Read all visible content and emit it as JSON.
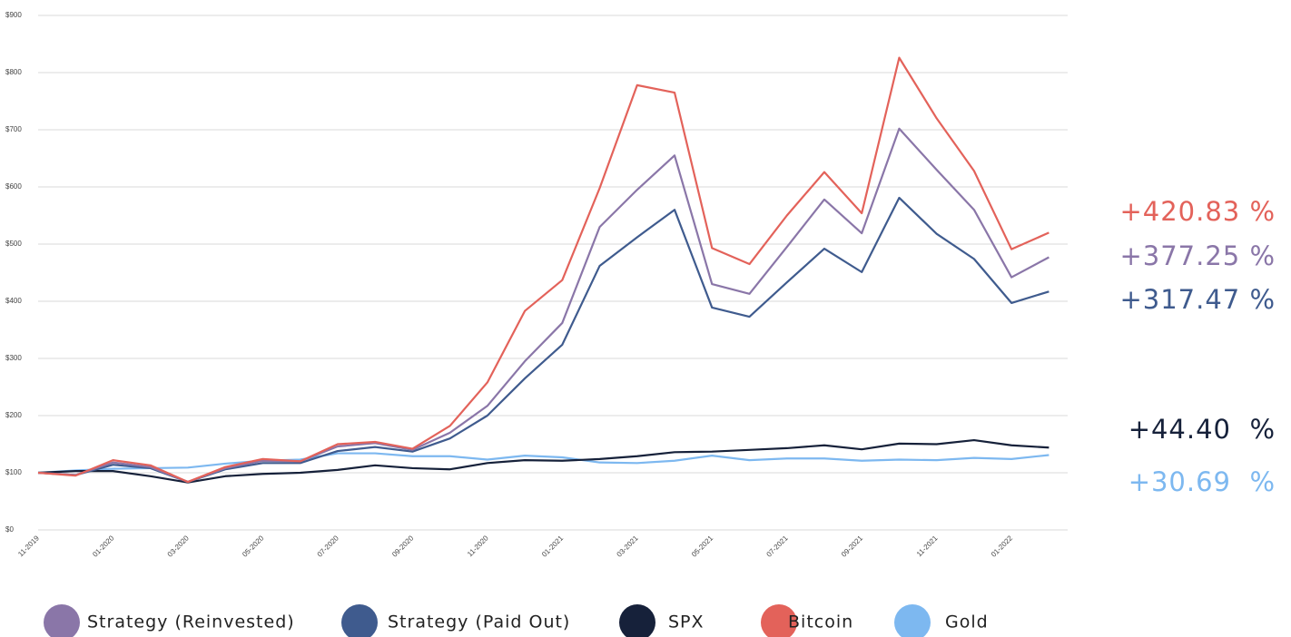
{
  "chart_data": {
    "type": "line",
    "categories": [
      "11-2019",
      null,
      "01-2020",
      null,
      "03-2020",
      null,
      "05-2020",
      null,
      "07-2020",
      null,
      "09-2020",
      null,
      "11-2020",
      null,
      "01-2021",
      null,
      "03-2021",
      null,
      "05-2021",
      null,
      "07-2021",
      null,
      "09-2021",
      null,
      "11-2021",
      null,
      "01-2022",
      null
    ],
    "series": [
      {
        "name": "Strategy (Reinvested)",
        "color": "#8a76a8",
        "values": [
          100,
          96,
          118,
          110,
          84,
          108,
          121,
          120,
          146,
          152,
          140,
          170,
          217,
          295,
          362,
          530,
          595,
          655,
          430,
          413,
          495,
          578,
          519,
          702,
          630,
          560,
          442,
          477
        ]
      },
      {
        "name": "Strategy (Paid Out)",
        "color": "#3f5b8e",
        "values": [
          100,
          96,
          114,
          108,
          84,
          106,
          117,
          117,
          138,
          145,
          137,
          160,
          200,
          265,
          324,
          462,
          512,
          560,
          389,
          373,
          433,
          492,
          451,
          581,
          518,
          474,
          397,
          417
        ]
      },
      {
        "name": "SPX",
        "color": "#16213a",
        "values": [
          100,
          103,
          103,
          94,
          83,
          94,
          98,
          100,
          105,
          113,
          108,
          106,
          117,
          122,
          121,
          124,
          129,
          136,
          137,
          140,
          143,
          148,
          141,
          151,
          150,
          157,
          148,
          144
        ]
      },
      {
        "name": "Bitcoin",
        "color": "#e3625a",
        "values": [
          100,
          95,
          122,
          113,
          84,
          110,
          124,
          120,
          150,
          154,
          142,
          182,
          258,
          383,
          437,
          598,
          778,
          765,
          493,
          465,
          550,
          626,
          554,
          826,
          720,
          628,
          491,
          520
        ]
      },
      {
        "name": "Gold",
        "color": "#7db8f0",
        "values": [
          100,
          104,
          107,
          108,
          109,
          116,
          121,
          123,
          134,
          134,
          129,
          129,
          123,
          130,
          127,
          118,
          117,
          121,
          130,
          122,
          125,
          125,
          121,
          123,
          122,
          126,
          124,
          131
        ]
      }
    ],
    "ylim": [
      0,
      900
    ],
    "yticks": [
      {
        "value": 0,
        "label": "$0"
      },
      {
        "value": 100,
        "label": "$100"
      },
      {
        "value": 200,
        "label": "$200"
      },
      {
        "value": 300,
        "label": "$300"
      },
      {
        "value": 400,
        "label": "$400"
      },
      {
        "value": 500,
        "label": "$500"
      },
      {
        "value": 600,
        "label": "$600"
      },
      {
        "value": 700,
        "label": "$700"
      },
      {
        "value": 800,
        "label": "$800"
      },
      {
        "value": 900,
        "label": "$900"
      }
    ],
    "grid": true,
    "annotations": [
      {
        "text": "+420.83 %",
        "color": "#e3625a"
      },
      {
        "text": "+377.25 %",
        "color": "#8a76a8"
      },
      {
        "text": "+317.47 %",
        "color": "#3f5b8e"
      },
      {
        "text": "+44.40  %",
        "color": "#16213a"
      },
      {
        "text": "+30.69  %",
        "color": "#7db8f0"
      }
    ]
  }
}
